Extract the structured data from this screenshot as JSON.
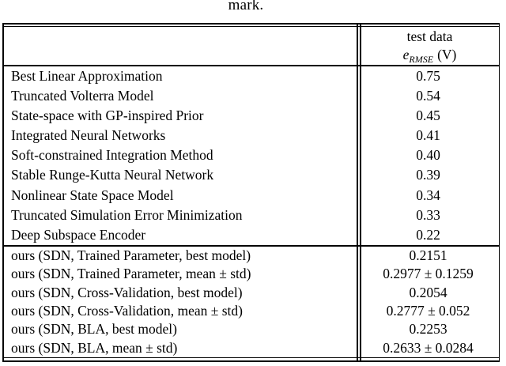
{
  "caption_fragment": "mark.",
  "table": {
    "header": {
      "col2_line1": "test data",
      "metric_e": "e",
      "metric_sub": "RMSE",
      "metric_unit": "(V)"
    },
    "sections": [
      {
        "name": "baselines",
        "rows": [
          {
            "method": "Best Linear Approximation",
            "value": "0.75"
          },
          {
            "method": "Truncated Volterra Model",
            "value": "0.54"
          },
          {
            "method": "State-space with GP-inspired Prior",
            "value": "0.45"
          },
          {
            "method": "Integrated Neural Networks",
            "value": "0.41"
          },
          {
            "method": "Soft-constrained Integration Method",
            "value": "0.40"
          },
          {
            "method": "Stable Runge-Kutta Neural Network",
            "value": "0.39"
          },
          {
            "method": "Nonlinear State Space Model",
            "value": "0.34"
          },
          {
            "method": "Truncated Simulation Error Minimization",
            "value": "0.33"
          },
          {
            "method": "Deep Subspace Encoder",
            "value": "0.22"
          }
        ]
      },
      {
        "name": "ours",
        "rows": [
          {
            "method": "ours (SDN, Trained Parameter, best model)",
            "value": "0.2151"
          },
          {
            "method": "ours (SDN, Trained Parameter, mean ± std)",
            "value": "0.2977 ± 0.1259"
          },
          {
            "method": "ours (SDN, Cross-Validation, best model)",
            "value": "0.2054"
          },
          {
            "method": "ours (SDN, Cross-Validation, mean ± std)",
            "value": "0.2777 ± 0.052"
          },
          {
            "method": "ours (SDN, BLA, best model)",
            "value": "0.2253"
          },
          {
            "method": "ours (SDN, BLA, mean ± std)",
            "value": "0.2633 ± 0.0284"
          }
        ]
      }
    ]
  }
}
